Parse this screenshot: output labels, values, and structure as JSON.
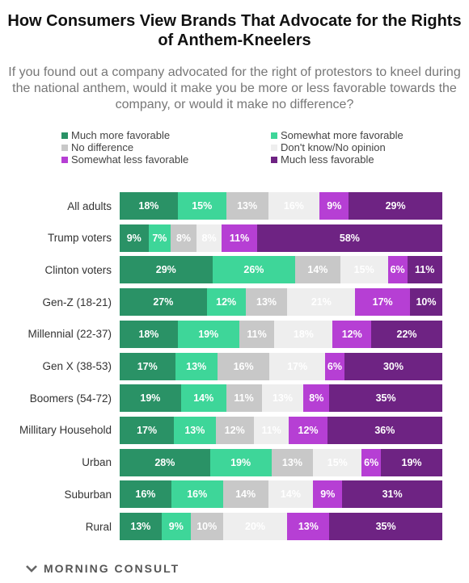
{
  "chart_data": {
    "type": "bar",
    "orientation": "horizontal",
    "stacked": true,
    "title": "How Consumers View Brands That Advocate for the Rights of Anthem-Kneelers",
    "subtitle": "If you found out a company advocated for the right of protestors to kneel during the national anthem, would it make you be more or less favorable towards the company, or would it make no difference?",
    "unit": "%",
    "legend_position": "top",
    "categories": [
      "All adults",
      "Trump voters",
      "Clinton voters",
      "Gen-Z (18-21)",
      "Millennial (22-37)",
      "Gen X (38-53)",
      "Boomers (54-72)",
      "Millitary Household",
      "Urban",
      "Suburban",
      "Rural"
    ],
    "series": [
      {
        "name": "Much more favorable",
        "color": "#2a9266",
        "values": [
          18,
          9,
          29,
          27,
          18,
          17,
          19,
          17,
          28,
          16,
          13
        ]
      },
      {
        "name": "Somewhat more favorable",
        "color": "#3ed699",
        "values": [
          15,
          7,
          26,
          12,
          19,
          13,
          14,
          13,
          19,
          16,
          9
        ]
      },
      {
        "name": "No difference",
        "color": "#c8c8c8",
        "values": [
          13,
          8,
          14,
          13,
          11,
          16,
          11,
          12,
          13,
          14,
          10
        ]
      },
      {
        "name": "Don't know/No opinion",
        "color": "#eeeeee",
        "values": [
          16,
          8,
          15,
          21,
          18,
          17,
          13,
          11,
          15,
          14,
          20
        ]
      },
      {
        "name": "Somewhat less favorable",
        "color": "#b63fd4",
        "values": [
          9,
          11,
          6,
          17,
          12,
          6,
          8,
          12,
          6,
          9,
          13
        ]
      },
      {
        "name": "Much less favorable",
        "color": "#6e2383",
        "values": [
          29,
          58,
          11,
          10,
          22,
          30,
          35,
          36,
          19,
          31,
          35
        ]
      }
    ]
  },
  "footer": {
    "brand": "MORNING CONSULT"
  }
}
